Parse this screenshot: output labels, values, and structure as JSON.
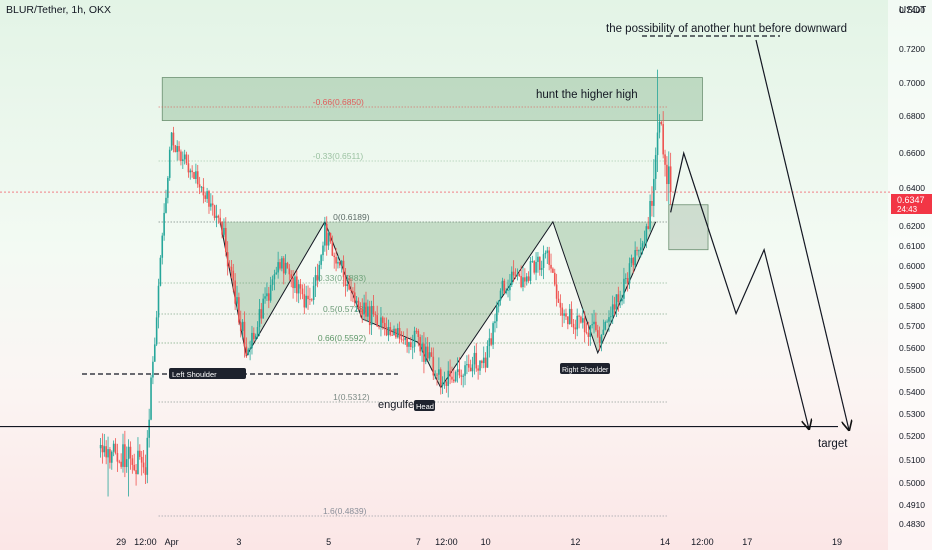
{
  "header": {
    "symbol": "BLUR/Tether, 1h, OKX",
    "currency": "USDT"
  },
  "price_tag": {
    "price": "0.6347",
    "countdown": "24:43"
  },
  "annotations": {
    "top_note": "the possibility of another hunt before downward",
    "higher_high": "hunt the higher high",
    "left_shoulder": "Left Shoulder",
    "head": "Head",
    "right_shoulder": "Right Shoulder",
    "engulfed": "engulfed",
    "target": "target"
  },
  "colors": {
    "bull": "#26a69a",
    "bear": "#ef5350",
    "zone": "#4e8f57",
    "price_line": "#f23645"
  },
  "chart_data": {
    "type": "candlestick",
    "title": "BLUR/Tether, 1h, OKX",
    "ylabel": "USDT",
    "ylim": [
      0.48,
      0.745
    ],
    "y_ticks": [
      {
        "label": "0.7400",
        "v": 0.74
      },
      {
        "label": "0.7200",
        "v": 0.72
      },
      {
        "label": "0.7000",
        "v": 0.7
      },
      {
        "label": "0.6800",
        "v": 0.68
      },
      {
        "label": "0.6600",
        "v": 0.66
      },
      {
        "label": "0.6400",
        "v": 0.64
      },
      {
        "label": "0.6200",
        "v": 0.62
      },
      {
        "label": "0.6100",
        "v": 0.61
      },
      {
        "label": "0.6000",
        "v": 0.6
      },
      {
        "label": "0.5900",
        "v": 0.59
      },
      {
        "label": "0.5800",
        "v": 0.58
      },
      {
        "label": "0.5700",
        "v": 0.57
      },
      {
        "label": "0.5600",
        "v": 0.56
      },
      {
        "label": "0.5500",
        "v": 0.55
      },
      {
        "label": "0.5400",
        "v": 0.54
      },
      {
        "label": "0.5300",
        "v": 0.53
      },
      {
        "label": "0.5200",
        "v": 0.52
      },
      {
        "label": "0.5100",
        "v": 0.51
      },
      {
        "label": "0.5000",
        "v": 0.5
      },
      {
        "label": "0.4910",
        "v": 0.491
      },
      {
        "label": "0.4830",
        "v": 0.483
      }
    ],
    "x_ticks": [
      {
        "label": "29",
        "t": -1
      },
      {
        "label": "12:00",
        "t": 12
      },
      {
        "label": "Apr",
        "t": 26
      },
      {
        "label": "3",
        "t": 62
      },
      {
        "label": "5",
        "t": 110
      },
      {
        "label": "7",
        "t": 158
      },
      {
        "label": "12:00",
        "t": 173
      },
      {
        "label": "10",
        "t": 194
      },
      {
        "label": "12",
        "t": 242
      },
      {
        "label": "14",
        "t": 290
      },
      {
        "label": "12:00",
        "t": 310
      },
      {
        "label": "17",
        "t": 334
      },
      {
        "label": "19",
        "t": 382
      }
    ],
    "fib_levels": [
      {
        "label": "-0.66(0.6850)",
        "v": 0.685
      },
      {
        "label": "-0.33(0.6511)",
        "v": 0.6511
      },
      {
        "label": "0(0.6189)",
        "v": 0.6189
      },
      {
        "label": "0.33(0.5883)",
        "v": 0.5883
      },
      {
        "label": "0.5(0.5728)",
        "v": 0.5728
      },
      {
        "label": "0.66(0.5592)",
        "v": 0.5592
      },
      {
        "label": "1(0.5312)",
        "v": 0.5312
      },
      {
        "label": "1.6(0.4839)",
        "v": 0.4839
      }
    ],
    "current_price": 0.6347,
    "target_level": 0.521,
    "support_level": 0.5445,
    "zones": [
      {
        "name": "upper-supply-zone",
        "t0": 21,
        "t1": 310,
        "y0": 0.6765,
        "y1": 0.7035
      },
      {
        "name": "retest-zone",
        "t0": 292,
        "t1": 313,
        "y0": 0.605,
        "y1": 0.628
      }
    ],
    "pattern": {
      "type": "inverse head and shoulders",
      "neckline": [
        {
          "t": 52,
          "v": 0.6189
        },
        {
          "t": 285,
          "v": 0.6189
        }
      ],
      "shoulders_and_head": [
        {
          "t": 52,
          "v": 0.619
        },
        {
          "t": 66,
          "v": 0.553
        },
        {
          "t": 108,
          "v": 0.619
        },
        {
          "t": 128,
          "v": 0.5705
        },
        {
          "t": 158,
          "v": 0.5595
        },
        {
          "t": 170,
          "v": 0.538
        },
        {
          "t": 230,
          "v": 0.619
        },
        {
          "t": 254,
          "v": 0.5545
        },
        {
          "t": 285,
          "v": 0.619
        }
      ]
    },
    "projection_path_1": [
      {
        "t": 293,
        "v": 0.624
      },
      {
        "t": 300,
        "v": 0.656
      },
      {
        "t": 328,
        "v": 0.573
      },
      {
        "t": 343,
        "v": 0.605
      },
      {
        "t": 367,
        "v": 0.52
      }
    ],
    "projection_path_2": [
      {
        "t": 343,
        "v": 0.744
      },
      {
        "t": 383,
        "v": 0.52
      }
    ],
    "key_points": [
      {
        "t": -12,
        "v": 0.512
      },
      {
        "t": 12,
        "v": 0.505
      },
      {
        "t": 26,
        "v": 0.665
      },
      {
        "t": 40,
        "v": 0.64
      },
      {
        "t": 52,
        "v": 0.62
      },
      {
        "t": 66,
        "v": 0.555
      },
      {
        "t": 84,
        "v": 0.598
      },
      {
        "t": 100,
        "v": 0.575
      },
      {
        "t": 108,
        "v": 0.614
      },
      {
        "t": 118,
        "v": 0.593
      },
      {
        "t": 128,
        "v": 0.576
      },
      {
        "t": 140,
        "v": 0.566
      },
      {
        "t": 158,
        "v": 0.56
      },
      {
        "t": 170,
        "v": 0.541
      },
      {
        "t": 186,
        "v": 0.55
      },
      {
        "t": 194,
        "v": 0.551
      },
      {
        "t": 204,
        "v": 0.588
      },
      {
        "t": 216,
        "v": 0.592
      },
      {
        "t": 226,
        "v": 0.603
      },
      {
        "t": 236,
        "v": 0.573
      },
      {
        "t": 248,
        "v": 0.568
      },
      {
        "t": 256,
        "v": 0.561
      },
      {
        "t": 270,
        "v": 0.592
      },
      {
        "t": 280,
        "v": 0.612
      },
      {
        "t": 284,
        "v": 0.64
      },
      {
        "t": 286,
        "v": 0.668
      },
      {
        "t": 288,
        "v": 0.666
      },
      {
        "t": 290,
        "v": 0.651
      },
      {
        "t": 293,
        "v": 0.6347
      }
    ]
  }
}
